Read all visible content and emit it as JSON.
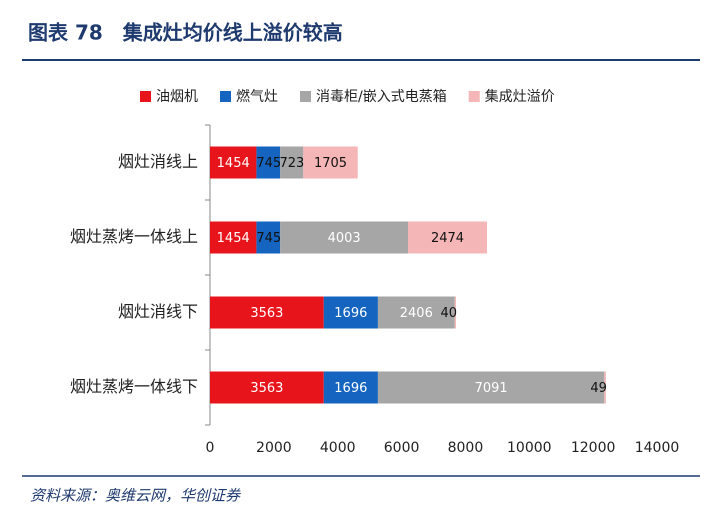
{
  "chart_data": {
    "type": "stacked-barh",
    "title": "图表 78　集成灶均价线上溢价较高",
    "source": "资料来源：奥维云网，华创证券",
    "categories": [
      "烟灶消线上",
      "烟灶蒸烤一体线上",
      "烟灶消线下",
      "烟灶蒸烤一体线下"
    ],
    "series": [
      {
        "name": "油烟机",
        "color": "#e8141c",
        "values": [
          1454,
          1454,
          3563,
          3563
        ]
      },
      {
        "name": "燃气灶",
        "color": "#1565c0",
        "values": [
          745,
          745,
          1696,
          1696
        ]
      },
      {
        "name": "消毒柜/嵌入式电蒸箱",
        "color": "#a6a6a6",
        "values": [
          723,
          4003,
          2406,
          7091
        ]
      },
      {
        "name": "集成灶溢价",
        "color": "#f4b6b6",
        "values": [
          1705,
          2474,
          40,
          49
        ]
      }
    ],
    "xlim": [
      0,
      14000
    ],
    "xticks": [
      0,
      2000,
      4000,
      6000,
      8000,
      10000,
      12000,
      14000
    ],
    "grid": false
  }
}
